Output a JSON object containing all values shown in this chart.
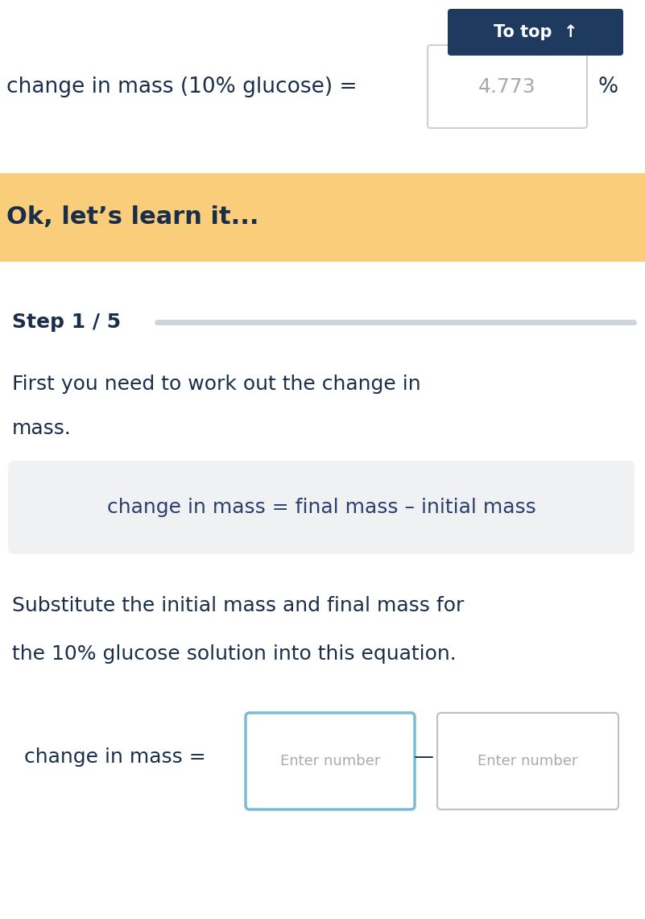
{
  "bg_color": "#ffffff",
  "yellow_banner_color": "#f9cd7a",
  "to_top_btn_color": "#1e3a5f",
  "to_top_btn_text": "To top  ↑",
  "line1_text": "change in mass (10% glucose) =",
  "input_box1_value": "4.773",
  "ok_text": "Ok, let’s learn it...",
  "step_text": "Step 1 / 5",
  "progress_bar_color": "#cdd4e0",
  "body_text1_line1": "First you need to work out the change in",
  "body_text1_line2": "mass.",
  "formula_box_color": "#f0f1f3",
  "formula_text": "change in mass = final mass – initial mass",
  "body_text2_line1": "Substitute the initial mass and final mass for",
  "body_text2_line2": "the 10% glucose solution into this equation.",
  "eq_label_text": "change in mass =",
  "input_box2_border": "#7bbcd5",
  "input_box2_text": "Enter number",
  "input_box3_border": "#c0c0c0",
  "input_box3_text": "Enter number",
  "dark_text_color": "#1a2e4a",
  "body_text_color": "#1a2e4a",
  "placeholder_color": "#aaaaaa",
  "formula_text_color": "#2c3e6e"
}
